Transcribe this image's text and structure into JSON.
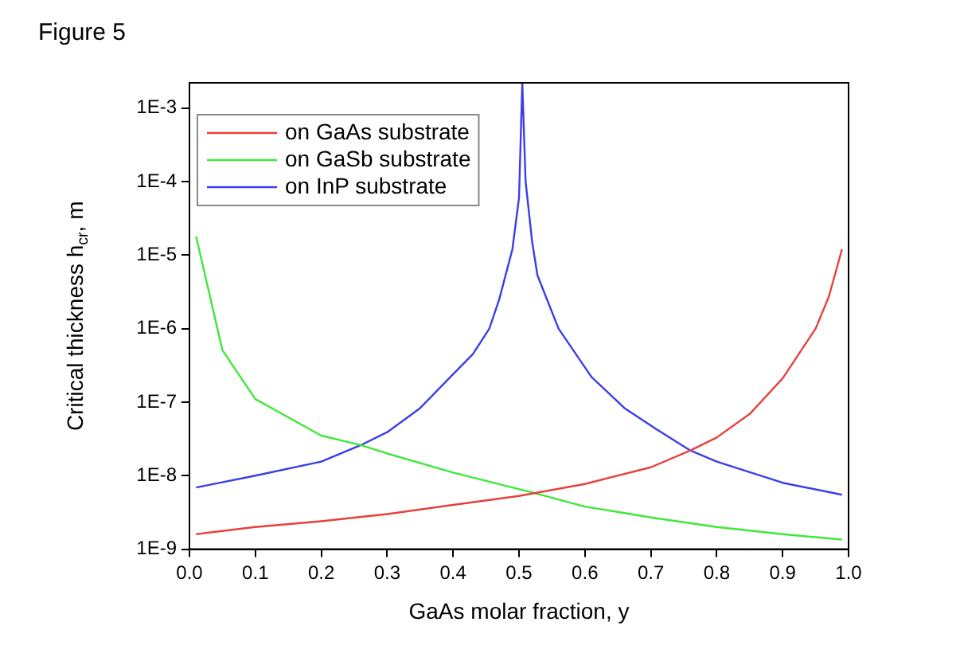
{
  "chart_data": {
    "type": "line",
    "title": "Figure 5",
    "xlabel": "GaAs molar fraction, y",
    "ylabel": "Critical thickness h$_{cr}$, m",
    "log": "y",
    "grid": false,
    "legend": "top left",
    "marker": "none",
    "line_style": "solid",
    "xlim": [
      0,
      1
    ],
    "xticks": [
      {
        "value": 0,
        "label": "0.0"
      },
      0.1,
      0.2,
      0.3,
      0.4,
      0.5,
      0.6,
      0.7,
      0.8,
      0.9,
      {
        "value": 1,
        "label": "1.0"
      }
    ],
    "ylim": [
      1e-09,
      0.0022
    ],
    "yticks": [
      {
        "value": 1e-09,
        "label": "1E-9"
      },
      {
        "value": 1e-08,
        "label": "1E-8"
      },
      {
        "value": 1e-07,
        "label": "1E-7"
      },
      {
        "value": 1e-06,
        "label": "1E-6"
      },
      {
        "value": 1e-05,
        "label": "1E-5"
      },
      {
        "value": 0.0001,
        "label": "1E-4"
      },
      {
        "value": 0.001,
        "label": "1E-3"
      }
    ],
    "series": [
      {
        "name": "on GaAs substrate",
        "color": "#e8403c",
        "x": [
          0.01,
          0.1,
          0.2,
          0.3,
          0.4,
          0.5,
          0.6,
          0.7,
          0.76,
          0.8,
          0.85,
          0.9,
          0.95,
          0.97,
          0.99
        ],
        "values": [
          1.6e-09,
          2e-09,
          2.4e-09,
          3e-09,
          4e-09,
          5.3e-09,
          7.7e-09,
          1.3e-08,
          2.2e-08,
          3.3e-08,
          6.9e-08,
          2.1e-07,
          1e-06,
          2.7e-06,
          1.2e-05
        ]
      },
      {
        "name": "on GaSb substrate",
        "color": "#3ee83a",
        "x": [
          0.01,
          0.05,
          0.1,
          0.2,
          0.26,
          0.3,
          0.4,
          0.52,
          0.6,
          0.7,
          0.8,
          0.9,
          0.99
        ],
        "values": [
          1.8e-05,
          5.1e-07,
          1.1e-07,
          3.5e-08,
          2.6e-08,
          2e-08,
          1.1e-08,
          5.9e-09,
          3.8e-09,
          2.7e-09,
          2e-09,
          1.6e-09,
          1.35e-09
        ]
      },
      {
        "name": "on InP substrate",
        "color": "#3b3de8",
        "x": [
          0.01,
          0.1,
          0.2,
          0.26,
          0.3,
          0.35,
          0.4,
          0.43,
          0.455,
          0.47,
          0.49,
          0.5,
          0.505,
          0.51,
          0.52,
          0.528,
          0.56,
          0.61,
          0.66,
          0.71,
          0.76,
          0.8,
          0.9,
          0.99
        ],
        "values": [
          6.9e-09,
          1e-08,
          1.55e-08,
          2.6e-08,
          3.9e-08,
          8.3e-08,
          2.4e-07,
          4.5e-07,
          1e-06,
          2.5e-06,
          1.2e-05,
          6e-05,
          0.0022,
          0.0001,
          1.5e-05,
          5.3e-06,
          1e-06,
          2.2e-07,
          8.3e-08,
          4.2e-08,
          2.2e-08,
          1.55e-08,
          8e-09,
          5.5e-09
        ]
      }
    ]
  }
}
